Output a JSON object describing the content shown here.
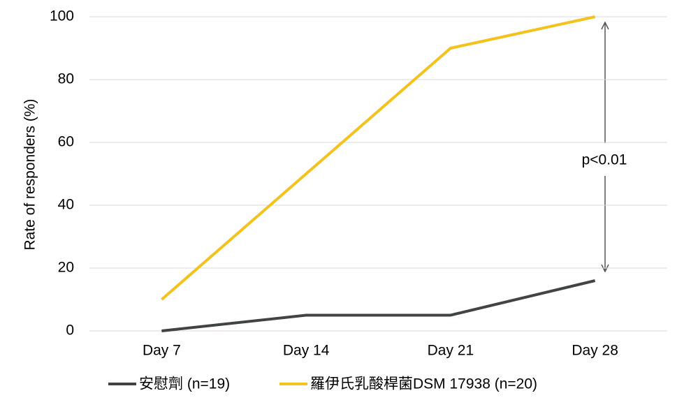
{
  "chart_data": {
    "type": "line",
    "y_label": "Rate of responders (%)",
    "categories": [
      "Day 7",
      "Day 14",
      "Day 21",
      "Day 28"
    ],
    "series": [
      {
        "name": "安慰劑 (n=19)",
        "color": "#404543",
        "values": [
          0,
          5,
          5,
          16
        ]
      },
      {
        "name": "羅伊氏乳酸桿菌DSM 17938 (n=20)",
        "color": "#f4c21d",
        "values": [
          10,
          50,
          90,
          100
        ]
      }
    ],
    "ylim": [
      0,
      100
    ],
    "yticks": [
      0,
      20,
      40,
      60,
      80,
      100
    ],
    "grid": true,
    "annotation": "p<0.01",
    "legend": "bottom"
  }
}
